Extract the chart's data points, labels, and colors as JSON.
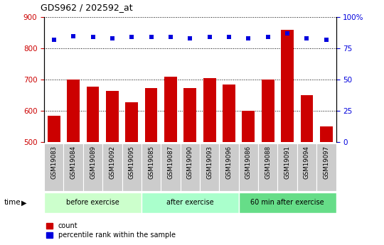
{
  "title": "GDS962 / 202592_at",
  "samples": [
    "GSM19083",
    "GSM19084",
    "GSM19089",
    "GSM19092",
    "GSM19095",
    "GSM19085",
    "GSM19087",
    "GSM19090",
    "GSM19093",
    "GSM19096",
    "GSM19086",
    "GSM19088",
    "GSM19091",
    "GSM19094",
    "GSM19097"
  ],
  "counts": [
    585,
    700,
    678,
    663,
    627,
    672,
    710,
    672,
    705,
    685,
    601,
    700,
    860,
    650,
    551
  ],
  "percentile_ranks": [
    82,
    85,
    84,
    83,
    84,
    84,
    84,
    83,
    84,
    84,
    83,
    84,
    87,
    83,
    82
  ],
  "groups": [
    {
      "label": "before exercise",
      "start": 0,
      "end": 5
    },
    {
      "label": "after exercise",
      "start": 5,
      "end": 10
    },
    {
      "label": "60 min after exercise",
      "start": 10,
      "end": 15
    }
  ],
  "group_colors": [
    "#ccffcc",
    "#aaffcc",
    "#66dd88"
  ],
  "ylim_left": [
    500,
    900
  ],
  "ylim_right": [
    0,
    100
  ],
  "yticks_left": [
    500,
    600,
    700,
    800,
    900
  ],
  "yticks_right": [
    0,
    25,
    50,
    75,
    100
  ],
  "bar_color": "#cc0000",
  "dot_color": "#0000dd",
  "grid_color": "#000000",
  "tick_color_left": "#cc0000",
  "tick_color_right": "#0000dd",
  "bg_color": "#ffffff",
  "label_bg": "#cccccc",
  "xlabel": "time",
  "legend_count_label": "count",
  "legend_pct_label": "percentile rank within the sample"
}
